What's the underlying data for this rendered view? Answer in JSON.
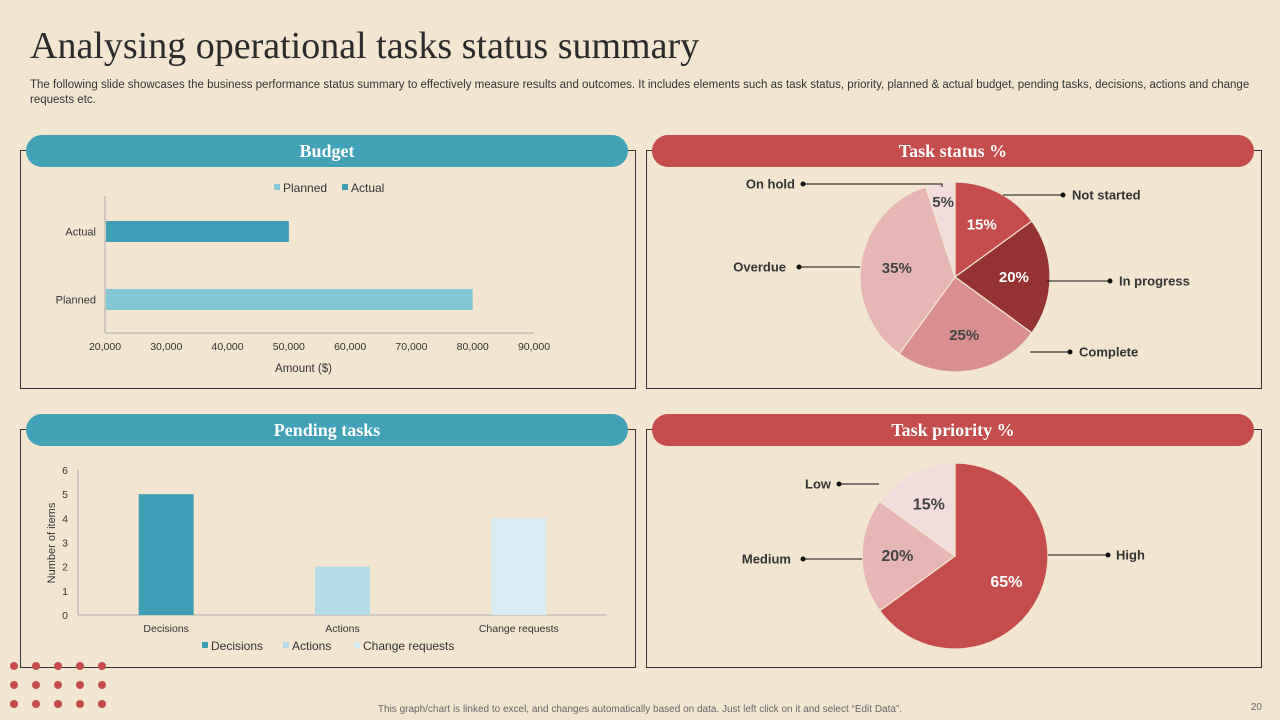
{
  "slide": {
    "title": "Analysing operational tasks status summary",
    "subtitle": "The following slide showcases the business performance status summary to effectively  measure results and outcomes. It includes elements such as task status, priority, planned & actual budget, pending tasks, decisions, actions and change requests etc.",
    "footer": "This graph/chart is linked to excel, and changes automatically based on data. Just left click on it and select “Edit Data”.",
    "page_number": "20"
  },
  "panels": {
    "budget": "Budget",
    "task_status": "Task status %",
    "pending": "Pending tasks",
    "priority": "Task priority %"
  },
  "colors": {
    "blue": "#43a1b8",
    "red": "#c44c4b",
    "planned": "#84c8d8",
    "actual": "#3f9db5"
  },
  "chart_data": [
    {
      "id": "budget",
      "type": "bar",
      "orientation": "horizontal",
      "categories": [
        "Actual",
        "Planned"
      ],
      "values": [
        50000,
        80000
      ],
      "colors": [
        "#3f9db5",
        "#84c8d8"
      ],
      "legend": [
        "Planned",
        "Actual"
      ],
      "legend_colors": [
        "#84c8d8",
        "#3f9db5"
      ],
      "xlabel": "Amount ($)",
      "xlim": [
        20000,
        90000
      ],
      "xticks": [
        20000,
        30000,
        40000,
        50000,
        60000,
        70000,
        80000,
        90000
      ],
      "xtick_labels": [
        "20,000",
        "30,000",
        "40,000",
        "50,000",
        "60,000",
        "70,000",
        "80,000",
        "90,000"
      ]
    },
    {
      "id": "task_status",
      "type": "pie",
      "labels": [
        "Not started",
        "In progress",
        "Complete",
        "Overdue",
        "On hold"
      ],
      "values": [
        15,
        20,
        25,
        35,
        5
      ],
      "value_labels": [
        "15%",
        "20%",
        "25%",
        "35%",
        "5%"
      ],
      "colors": [
        "#c44c4b",
        "#953232",
        "#d98f8f",
        "#e6b5b4",
        "#f3dcdc"
      ]
    },
    {
      "id": "pending",
      "type": "bar",
      "categories": [
        "Decisions",
        "Actions",
        "Change requests"
      ],
      "values": [
        5,
        2,
        4
      ],
      "colors": [
        "#3f9db5",
        "#b2dde7",
        "#d9eef4"
      ],
      "ylabel": "Number of items",
      "ylim": [
        0,
        6
      ],
      "yticks": [
        "0",
        "1",
        "2",
        "3",
        "4",
        "5",
        "6"
      ],
      "legend": [
        "Decisions",
        "Actions",
        "Change requests"
      ]
    },
    {
      "id": "priority",
      "type": "pie",
      "labels": [
        "High",
        "Medium",
        "Low"
      ],
      "values": [
        65,
        20,
        15
      ],
      "value_labels": [
        "65%",
        "20%",
        "15%"
      ],
      "colors": [
        "#c44c4b",
        "#e6b5b4",
        "#f3dcdc"
      ]
    }
  ]
}
